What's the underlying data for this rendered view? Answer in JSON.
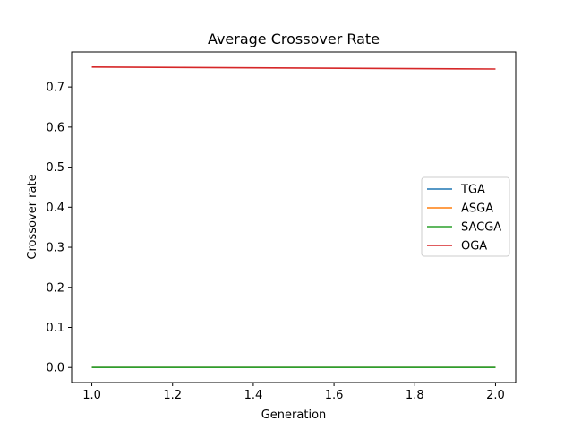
{
  "chart_data": {
    "type": "line",
    "title": "Average Crossover Rate",
    "xlabel": "Generation",
    "ylabel": "Crossover rate",
    "xlim": [
      0.95,
      2.05
    ],
    "ylim": [
      -0.0375,
      0.7875
    ],
    "x_ticks": [
      1.0,
      1.2,
      1.4,
      1.6,
      1.8,
      2.0
    ],
    "x_tick_labels": [
      "1.0",
      "1.2",
      "1.4",
      "1.6",
      "1.8",
      "2.0"
    ],
    "y_ticks": [
      0.0,
      0.1,
      0.2,
      0.3,
      0.4,
      0.5,
      0.6,
      0.7
    ],
    "y_tick_labels": [
      "0.0",
      "0.1",
      "0.2",
      "0.3",
      "0.4",
      "0.5",
      "0.6",
      "0.7"
    ],
    "grid": false,
    "legend_position": "center-right",
    "x": [
      1.0,
      2.0
    ],
    "series": [
      {
        "name": "TGA",
        "color": "#1f77b4",
        "values": [
          0.0,
          0.0
        ]
      },
      {
        "name": "ASGA",
        "color": "#ff7f0e",
        "values": [
          0.0,
          0.0
        ]
      },
      {
        "name": "SACGA",
        "color": "#2ca02c",
        "values": [
          0.0,
          0.0
        ]
      },
      {
        "name": "OGA",
        "color": "#d62728",
        "values": [
          0.75,
          0.745
        ]
      }
    ]
  }
}
